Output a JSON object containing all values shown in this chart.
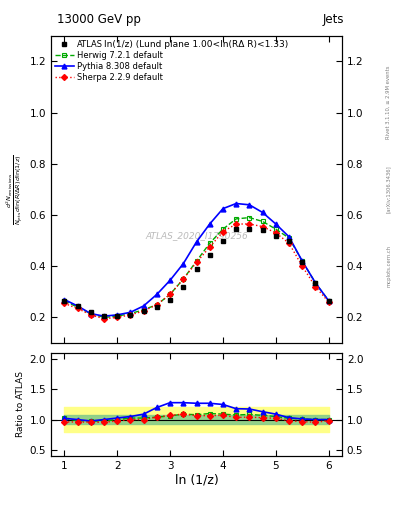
{
  "title_left": "13000 GeV pp",
  "title_right": "Jets",
  "subtitle": "ln(1/z) (Lund plane 1.00<ln(RΔ R)<1.33)",
  "xlabel": "ln (1/z)",
  "ylabel_ratio": "Ratio to ATLAS",
  "watermark": "ATLAS_2020_I1790256",
  "rivet_text": "Rivet 3.1.10, ≥ 2.9M events",
  "arxiv_text": "[arXiv:1306.3436]",
  "mcplots_text": "mcplots.cern.ch",
  "x_data": [
    1.0,
    1.25,
    1.5,
    1.75,
    2.0,
    2.25,
    2.5,
    2.75,
    3.0,
    3.25,
    3.5,
    3.75,
    4.0,
    4.25,
    4.5,
    4.75,
    5.0,
    5.25,
    5.5,
    5.75,
    6.0
  ],
  "atlas_y": [
    0.265,
    0.245,
    0.22,
    0.205,
    0.205,
    0.21,
    0.225,
    0.24,
    0.27,
    0.32,
    0.39,
    0.445,
    0.5,
    0.545,
    0.545,
    0.54,
    0.52,
    0.5,
    0.415,
    0.335,
    0.265
  ],
  "herwig_y": [
    0.265,
    0.24,
    0.215,
    0.2,
    0.205,
    0.215,
    0.23,
    0.25,
    0.29,
    0.35,
    0.42,
    0.49,
    0.545,
    0.585,
    0.59,
    0.575,
    0.545,
    0.51,
    0.42,
    0.335,
    0.265
  ],
  "pythia_y": [
    0.27,
    0.245,
    0.215,
    0.205,
    0.21,
    0.22,
    0.245,
    0.29,
    0.345,
    0.41,
    0.495,
    0.565,
    0.625,
    0.645,
    0.64,
    0.61,
    0.565,
    0.515,
    0.42,
    0.335,
    0.265
  ],
  "sherpa_y": [
    0.255,
    0.235,
    0.21,
    0.195,
    0.2,
    0.21,
    0.225,
    0.25,
    0.29,
    0.35,
    0.415,
    0.475,
    0.535,
    0.565,
    0.565,
    0.555,
    0.53,
    0.49,
    0.4,
    0.32,
    0.26
  ],
  "herwig_ratio": [
    1.02,
    0.98,
    0.975,
    0.975,
    1.0,
    1.025,
    1.025,
    1.04,
    1.06,
    1.09,
    1.08,
    1.1,
    1.09,
    1.075,
    1.085,
    1.07,
    1.05,
    1.02,
    1.01,
    1.0,
    1.0
  ],
  "pythia_ratio": [
    1.02,
    1.0,
    0.975,
    1.0,
    1.025,
    1.05,
    1.09,
    1.2,
    1.28,
    1.28,
    1.27,
    1.27,
    1.25,
    1.18,
    1.175,
    1.13,
    1.09,
    1.03,
    1.01,
    1.0,
    1.0
  ],
  "sherpa_ratio": [
    0.96,
    0.96,
    0.955,
    0.955,
    0.975,
    1.0,
    1.0,
    1.04,
    1.07,
    1.09,
    1.065,
    1.065,
    1.07,
    1.035,
    1.04,
    1.03,
    1.02,
    0.98,
    0.965,
    0.955,
    0.98
  ],
  "atlas_color": "#000000",
  "herwig_color": "#00aa00",
  "pythia_color": "#0000ff",
  "sherpa_color": "#ff0000",
  "yellow_lo": [
    0.8,
    0.8,
    0.8,
    0.8,
    0.8,
    0.8,
    0.8,
    0.8,
    0.8,
    0.8,
    0.8,
    0.8,
    0.8,
    0.8,
    0.8,
    0.8,
    0.8,
    0.8,
    0.8,
    0.8,
    0.8
  ],
  "yellow_hi": [
    1.2,
    1.2,
    1.2,
    1.2,
    1.2,
    1.2,
    1.2,
    1.2,
    1.2,
    1.2,
    1.2,
    1.2,
    1.2,
    1.2,
    1.2,
    1.2,
    1.2,
    1.2,
    1.2,
    1.2,
    1.2
  ],
  "green_lo": [
    0.93,
    0.93,
    0.93,
    0.93,
    0.93,
    0.93,
    0.93,
    0.93,
    0.93,
    0.93,
    0.93,
    0.93,
    0.93,
    0.93,
    0.93,
    0.93,
    0.93,
    0.93,
    0.93,
    0.93,
    0.93
  ],
  "green_hi": [
    1.07,
    1.07,
    1.07,
    1.07,
    1.07,
    1.07,
    1.07,
    1.07,
    1.07,
    1.07,
    1.07,
    1.07,
    1.07,
    1.07,
    1.07,
    1.07,
    1.07,
    1.07,
    1.07,
    1.07,
    1.07
  ],
  "xlim": [
    0.75,
    6.25
  ],
  "ylim_main": [
    0.1,
    1.3
  ],
  "ylim_ratio": [
    0.4,
    2.1
  ],
  "yticks_main": [
    0.2,
    0.4,
    0.6,
    0.8,
    1.0,
    1.2
  ],
  "yticks_ratio": [
    0.5,
    1.0,
    1.5,
    2.0
  ]
}
